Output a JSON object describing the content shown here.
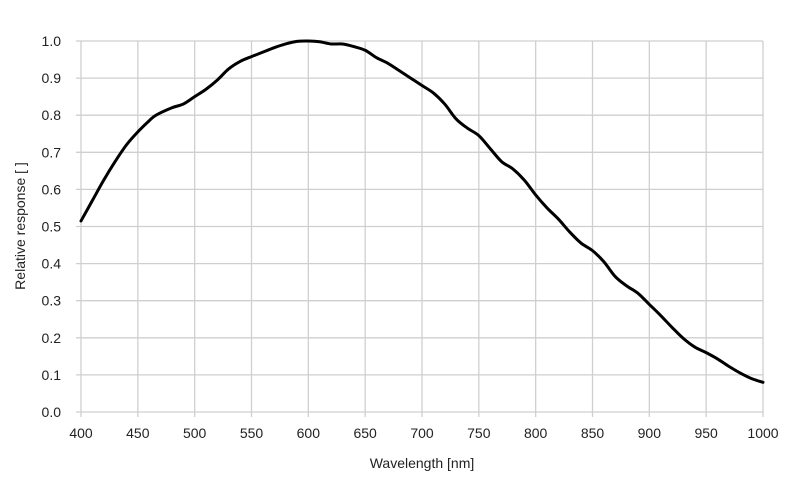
{
  "chart_data": {
    "type": "line",
    "title": "",
    "xlabel": "Wavelength [nm]",
    "ylabel": "Relative response [ ]",
    "xlim": [
      400,
      1000
    ],
    "ylim": [
      0,
      1.0
    ],
    "grid": true,
    "xticks": [
      "400",
      "450",
      "500",
      "550",
      "600",
      "650",
      "700",
      "750",
      "800",
      "850",
      "900",
      "950",
      "1000"
    ],
    "yticks": [
      "0.0",
      "0.1",
      "0.2",
      "0.3",
      "0.4",
      "0.5",
      "0.6",
      "0.7",
      "0.8",
      "0.9",
      "1.0"
    ],
    "series": [
      {
        "name": "Relative response",
        "color": "#000000",
        "x": [
          400,
          410,
          420,
          430,
          440,
          450,
          460,
          466,
          480,
          490,
          500,
          510,
          520,
          530,
          540,
          550,
          560,
          570,
          580,
          590,
          600,
          610,
          620,
          630,
          640,
          650,
          660,
          670,
          680,
          690,
          700,
          710,
          720,
          730,
          740,
          750,
          760,
          770,
          780,
          790,
          800,
          810,
          820,
          830,
          840,
          850,
          860,
          870,
          880,
          890,
          900,
          910,
          920,
          930,
          940,
          950,
          960,
          970,
          980,
          990,
          1000
        ],
        "y": [
          0.515,
          0.57,
          0.625,
          0.675,
          0.72,
          0.755,
          0.785,
          0.8,
          0.82,
          0.83,
          0.85,
          0.87,
          0.895,
          0.925,
          0.945,
          0.958,
          0.97,
          0.982,
          0.992,
          0.999,
          1.0,
          0.998,
          0.992,
          0.992,
          0.985,
          0.975,
          0.955,
          0.94,
          0.92,
          0.9,
          0.88,
          0.86,
          0.83,
          0.79,
          0.765,
          0.745,
          0.71,
          0.675,
          0.655,
          0.625,
          0.585,
          0.55,
          0.52,
          0.485,
          0.455,
          0.435,
          0.405,
          0.365,
          0.34,
          0.32,
          0.29,
          0.26,
          0.228,
          0.198,
          0.175,
          0.16,
          0.143,
          0.123,
          0.105,
          0.09,
          0.08
        ]
      }
    ]
  }
}
